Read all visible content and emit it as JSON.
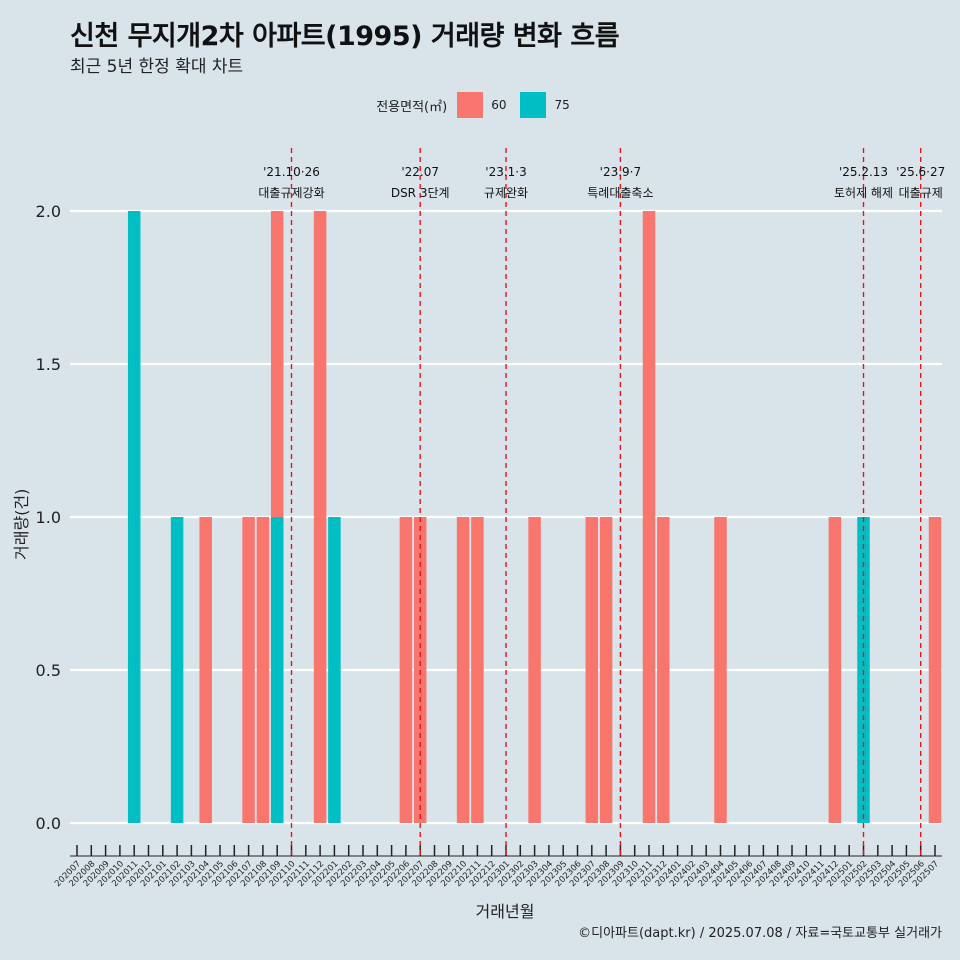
{
  "header": {
    "title": "신천 무지개2차 아파트(1995) 거래량 변화 흐름",
    "subtitle": "최근 5년 한정 확대 차트"
  },
  "legend": {
    "title": "전용면적(㎡)",
    "items": [
      {
        "label": "60",
        "color": "#f8766d"
      },
      {
        "label": "75",
        "color": "#00bfc4"
      }
    ]
  },
  "caption": "©디아파트(dapt.kr) / 2025.07.08 / 자료=국토교통부 실거래가",
  "chart_data": {
    "type": "bar",
    "xlabel": "거래년월",
    "ylabel": "거래량(건)",
    "ylim": [
      0,
      2.15
    ],
    "yticks": [
      "0.0",
      "0.5",
      "1.0",
      "1.5",
      "2.0"
    ],
    "grid": true,
    "legend_position": "top",
    "categories": [
      "202007",
      "202008",
      "202009",
      "202010",
      "202011",
      "202012",
      "202101",
      "202102",
      "202103",
      "202104",
      "202105",
      "202106",
      "202107",
      "202108",
      "202109",
      "202110",
      "202111",
      "202112",
      "202201",
      "202202",
      "202203",
      "202204",
      "202205",
      "202206",
      "202207",
      "202208",
      "202209",
      "202210",
      "202211",
      "202212",
      "202301",
      "202302",
      "202303",
      "202304",
      "202305",
      "202306",
      "202307",
      "202308",
      "202309",
      "202310",
      "202311",
      "202312",
      "202401",
      "202402",
      "202403",
      "202404",
      "202405",
      "202406",
      "202407",
      "202408",
      "202409",
      "202410",
      "202411",
      "202412",
      "202501",
      "202502",
      "202503",
      "202504",
      "202505",
      "202506",
      "202507"
    ],
    "series": [
      {
        "name": "60",
        "color": "#f8766d",
        "points": [
          {
            "x": "202104",
            "y": 1
          },
          {
            "x": "202107",
            "y": 1
          },
          {
            "x": "202108",
            "y": 1
          },
          {
            "x": "202109",
            "y": 2
          },
          {
            "x": "202112",
            "y": 2
          },
          {
            "x": "202206",
            "y": 1
          },
          {
            "x": "202207",
            "y": 1
          },
          {
            "x": "202210",
            "y": 1
          },
          {
            "x": "202211",
            "y": 1
          },
          {
            "x": "202303",
            "y": 1
          },
          {
            "x": "202307",
            "y": 1
          },
          {
            "x": "202308",
            "y": 1
          },
          {
            "x": "202311",
            "y": 2
          },
          {
            "x": "202312",
            "y": 1
          },
          {
            "x": "202404",
            "y": 1
          },
          {
            "x": "202412",
            "y": 1
          },
          {
            "x": "202507",
            "y": 1
          }
        ]
      },
      {
        "name": "75",
        "color": "#00bfc4",
        "points": [
          {
            "x": "202011",
            "y": 2
          },
          {
            "x": "202102",
            "y": 1
          },
          {
            "x": "202109",
            "y": 1
          },
          {
            "x": "202201",
            "y": 1
          },
          {
            "x": "202502",
            "y": 1
          }
        ]
      }
    ],
    "annotations": [
      {
        "x": "202110",
        "date": "'21.10·26",
        "label": "대출규제강화"
      },
      {
        "x": "202207",
        "date": "'22.07",
        "label": "DSR 3단계"
      },
      {
        "x": "202301",
        "date": "'23.1·3",
        "label": "규제완화"
      },
      {
        "x": "202309",
        "date": "'23.9·7",
        "label": "특례대출축소"
      },
      {
        "x": "202502",
        "date": "'25.2.13",
        "label": "토허제 해제"
      },
      {
        "x": "202506",
        "date": "'25.6·27",
        "label": "대출규제"
      }
    ]
  }
}
